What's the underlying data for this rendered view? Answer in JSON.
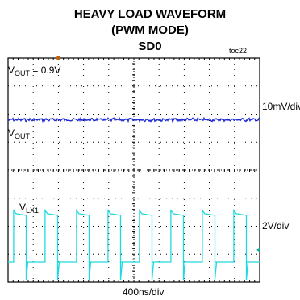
{
  "title_line1": "HEAVY LOAD WAVEFORM",
  "title_line2": "(PWM MODE)",
  "title_line3": "SD0",
  "figure_code": "toc22",
  "colors": {
    "vout": "#1f2bd6",
    "vlx": "#22d8e0",
    "grid": "#000000",
    "marker": "#c06010"
  },
  "chart_data": {
    "type": "line",
    "title": "HEAVY LOAD WAVEFORM (PWM MODE) SD0",
    "xlabel": "400ns/div",
    "x_divisions": 10,
    "y_divisions": 8,
    "grid": true,
    "annotation": {
      "v_main": "V",
      "v_sub": "OUT",
      "v_rest": " = 0.9V"
    },
    "series": [
      {
        "name_main": "V",
        "name_sub": "OUT",
        "scale": "10mV/div",
        "level_div": 5.8,
        "kind": "ripple"
      },
      {
        "name_main": "V",
        "name_sub": "LX1",
        "scale": "2V/div",
        "kind": "square",
        "high_div": 2.45,
        "low_div": 0.72,
        "period_div": 1.25,
        "duty": 0.4,
        "phase_div": 0.22
      }
    ]
  }
}
